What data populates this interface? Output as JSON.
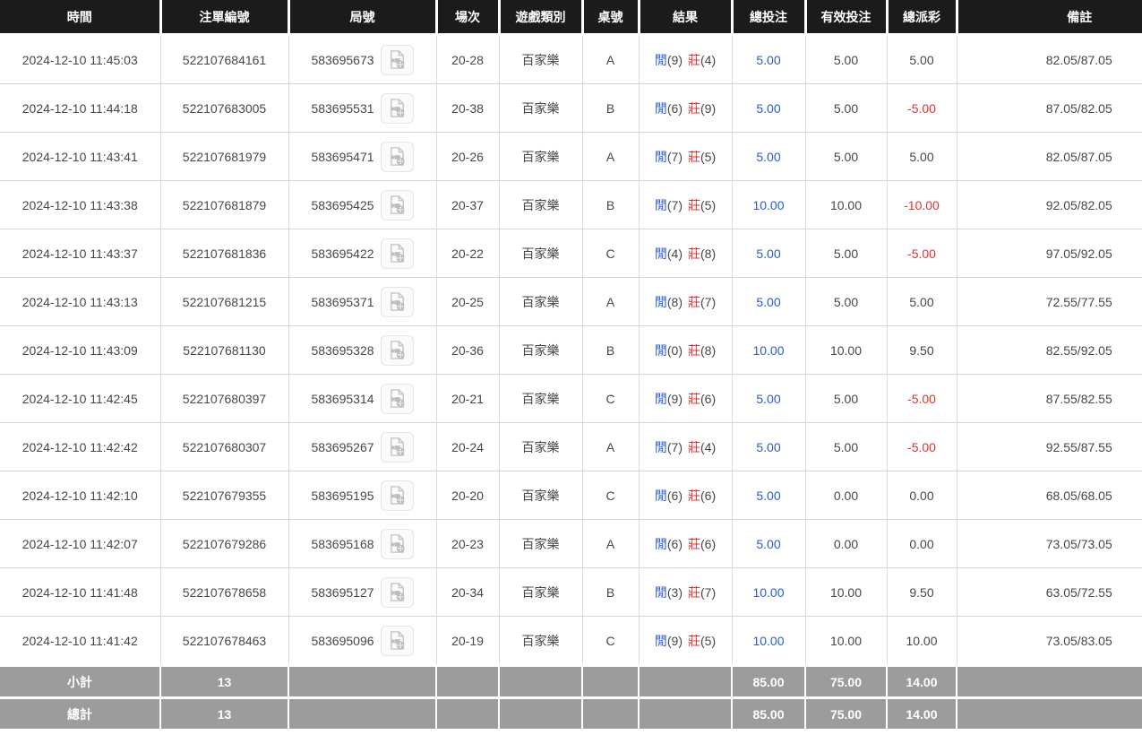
{
  "labels": {
    "player": "閒",
    "banker": "莊"
  },
  "icons": {
    "round_replay": "video-replay-icon"
  },
  "colors": {
    "header_bg": "#1b1b1b",
    "accent_blue": "#2a5bce",
    "accent_red": "#e03333",
    "footer_bg": "#9c9c9c"
  },
  "table": {
    "columns": [
      {
        "key": "time",
        "label": "時間"
      },
      {
        "key": "bet-id",
        "label": "注單編號"
      },
      {
        "key": "round-id",
        "label": "局號"
      },
      {
        "key": "session",
        "label": "場次"
      },
      {
        "key": "game-type",
        "label": "遊戲類別"
      },
      {
        "key": "table-code",
        "label": "桌號"
      },
      {
        "key": "result",
        "label": "結果"
      },
      {
        "key": "total-bet",
        "label": "總投注"
      },
      {
        "key": "valid-bet",
        "label": "有效投注"
      },
      {
        "key": "payout",
        "label": "總派彩"
      },
      {
        "key": "remark",
        "label": "備註"
      }
    ],
    "rows": [
      {
        "time": "2024-12-10 11:45:03",
        "bet_id": "522107684161",
        "round_id": "583695673",
        "session": "20-28",
        "game_type": "百家樂",
        "table_code": "A",
        "player_score": "(9)",
        "banker_score": "(4)",
        "total_bet": "5.00",
        "valid_bet": "5.00",
        "payout": "5.00",
        "remark": "82.05/87.05"
      },
      {
        "time": "2024-12-10 11:44:18",
        "bet_id": "522107683005",
        "round_id": "583695531",
        "session": "20-38",
        "game_type": "百家樂",
        "table_code": "B",
        "player_score": "(6)",
        "banker_score": "(9)",
        "total_bet": "5.00",
        "valid_bet": "5.00",
        "payout": "-5.00",
        "remark": "87.05/82.05"
      },
      {
        "time": "2024-12-10 11:43:41",
        "bet_id": "522107681979",
        "round_id": "583695471",
        "session": "20-26",
        "game_type": "百家樂",
        "table_code": "A",
        "player_score": "(7)",
        "banker_score": "(5)",
        "total_bet": "5.00",
        "valid_bet": "5.00",
        "payout": "5.00",
        "remark": "82.05/87.05"
      },
      {
        "time": "2024-12-10 11:43:38",
        "bet_id": "522107681879",
        "round_id": "583695425",
        "session": "20-37",
        "game_type": "百家樂",
        "table_code": "B",
        "player_score": "(7)",
        "banker_score": "(5)",
        "total_bet": "10.00",
        "valid_bet": "10.00",
        "payout": "-10.00",
        "remark": "92.05/82.05"
      },
      {
        "time": "2024-12-10 11:43:37",
        "bet_id": "522107681836",
        "round_id": "583695422",
        "session": "20-22",
        "game_type": "百家樂",
        "table_code": "C",
        "player_score": "(4)",
        "banker_score": "(8)",
        "total_bet": "5.00",
        "valid_bet": "5.00",
        "payout": "-5.00",
        "remark": "97.05/92.05"
      },
      {
        "time": "2024-12-10 11:43:13",
        "bet_id": "522107681215",
        "round_id": "583695371",
        "session": "20-25",
        "game_type": "百家樂",
        "table_code": "A",
        "player_score": "(8)",
        "banker_score": "(7)",
        "total_bet": "5.00",
        "valid_bet": "5.00",
        "payout": "5.00",
        "remark": "72.55/77.55"
      },
      {
        "time": "2024-12-10 11:43:09",
        "bet_id": "522107681130",
        "round_id": "583695328",
        "session": "20-36",
        "game_type": "百家樂",
        "table_code": "B",
        "player_score": "(0)",
        "banker_score": "(8)",
        "total_bet": "10.00",
        "valid_bet": "10.00",
        "payout": "9.50",
        "remark": "82.55/92.05"
      },
      {
        "time": "2024-12-10 11:42:45",
        "bet_id": "522107680397",
        "round_id": "583695314",
        "session": "20-21",
        "game_type": "百家樂",
        "table_code": "C",
        "player_score": "(9)",
        "banker_score": "(6)",
        "total_bet": "5.00",
        "valid_bet": "5.00",
        "payout": "-5.00",
        "remark": "87.55/82.55"
      },
      {
        "time": "2024-12-10 11:42:42",
        "bet_id": "522107680307",
        "round_id": "583695267",
        "session": "20-24",
        "game_type": "百家樂",
        "table_code": "A",
        "player_score": "(7)",
        "banker_score": "(4)",
        "total_bet": "5.00",
        "valid_bet": "5.00",
        "payout": "-5.00",
        "remark": "92.55/87.55"
      },
      {
        "time": "2024-12-10 11:42:10",
        "bet_id": "522107679355",
        "round_id": "583695195",
        "session": "20-20",
        "game_type": "百家樂",
        "table_code": "C",
        "player_score": "(6)",
        "banker_score": "(6)",
        "total_bet": "5.00",
        "valid_bet": "0.00",
        "payout": "0.00",
        "remark": "68.05/68.05"
      },
      {
        "time": "2024-12-10 11:42:07",
        "bet_id": "522107679286",
        "round_id": "583695168",
        "session": "20-23",
        "game_type": "百家樂",
        "table_code": "A",
        "player_score": "(6)",
        "banker_score": "(6)",
        "total_bet": "5.00",
        "valid_bet": "0.00",
        "payout": "0.00",
        "remark": "73.05/73.05"
      },
      {
        "time": "2024-12-10 11:41:48",
        "bet_id": "522107678658",
        "round_id": "583695127",
        "session": "20-34",
        "game_type": "百家樂",
        "table_code": "B",
        "player_score": "(3)",
        "banker_score": "(7)",
        "total_bet": "10.00",
        "valid_bet": "10.00",
        "payout": "9.50",
        "remark": "63.05/72.55"
      },
      {
        "time": "2024-12-10 11:41:42",
        "bet_id": "522107678463",
        "round_id": "583695096",
        "session": "20-19",
        "game_type": "百家樂",
        "table_code": "C",
        "player_score": "(9)",
        "banker_score": "(5)",
        "total_bet": "10.00",
        "valid_bet": "10.00",
        "payout": "10.00",
        "remark": "73.05/83.05"
      }
    ],
    "footer": [
      {
        "label": "小計",
        "count": "13",
        "total_bet": "85.00",
        "valid_bet": "75.00",
        "payout": "14.00"
      },
      {
        "label": "總計",
        "count": "13",
        "total_bet": "85.00",
        "valid_bet": "75.00",
        "payout": "14.00"
      }
    ]
  }
}
